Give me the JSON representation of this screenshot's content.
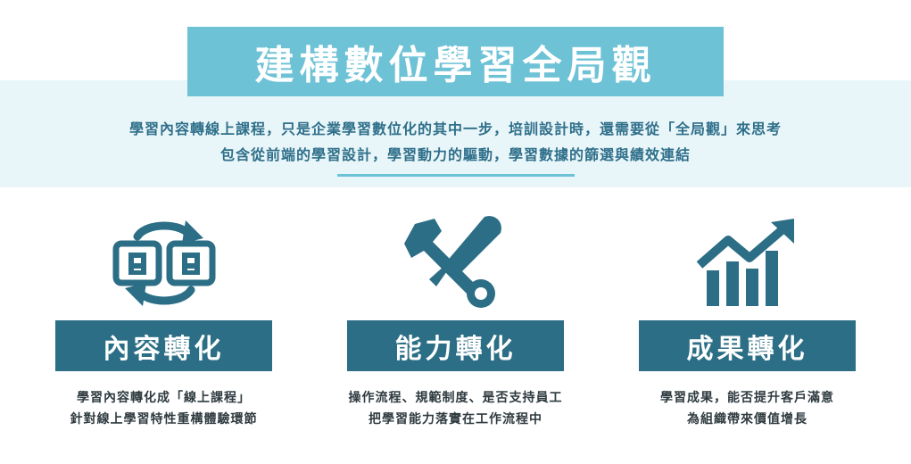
{
  "header": {
    "title": "建構數位學習全局觀",
    "subtitle_line1": "學習內容轉線上課程，只是企業學習數位化的其中一步，培訓設計時，還需要從「全局觀」來思考",
    "subtitle_line2": "包含從前端的學習設計，學習動力的驅動，學習數據的篩選與績效連結"
  },
  "columns": [
    {
      "icon": "convert-refresh-icon",
      "title": "內容轉化",
      "desc_line1": "學習內容轉化成「線上課程」",
      "desc_line2": "針對線上學習特性重構體驗環節"
    },
    {
      "icon": "wrench-screwdriver-icon",
      "title": "能力轉化",
      "desc_line1": "操作流程、規範制度、是否支持員工",
      "desc_line2": "把學習能力落實在工作流程中"
    },
    {
      "icon": "growth-chart-icon",
      "title": "成果轉化",
      "desc_line1": "學習成果，能否提升客戶滿意",
      "desc_line2": "為組織帶來價值增長"
    }
  ],
  "colors": {
    "title_bg": "#6ec2d6",
    "band_bg": "#e9f6f9",
    "label_bg": "#2b6e85",
    "icon": "#2b6e85",
    "subtitle_text": "#2f6f8a"
  }
}
